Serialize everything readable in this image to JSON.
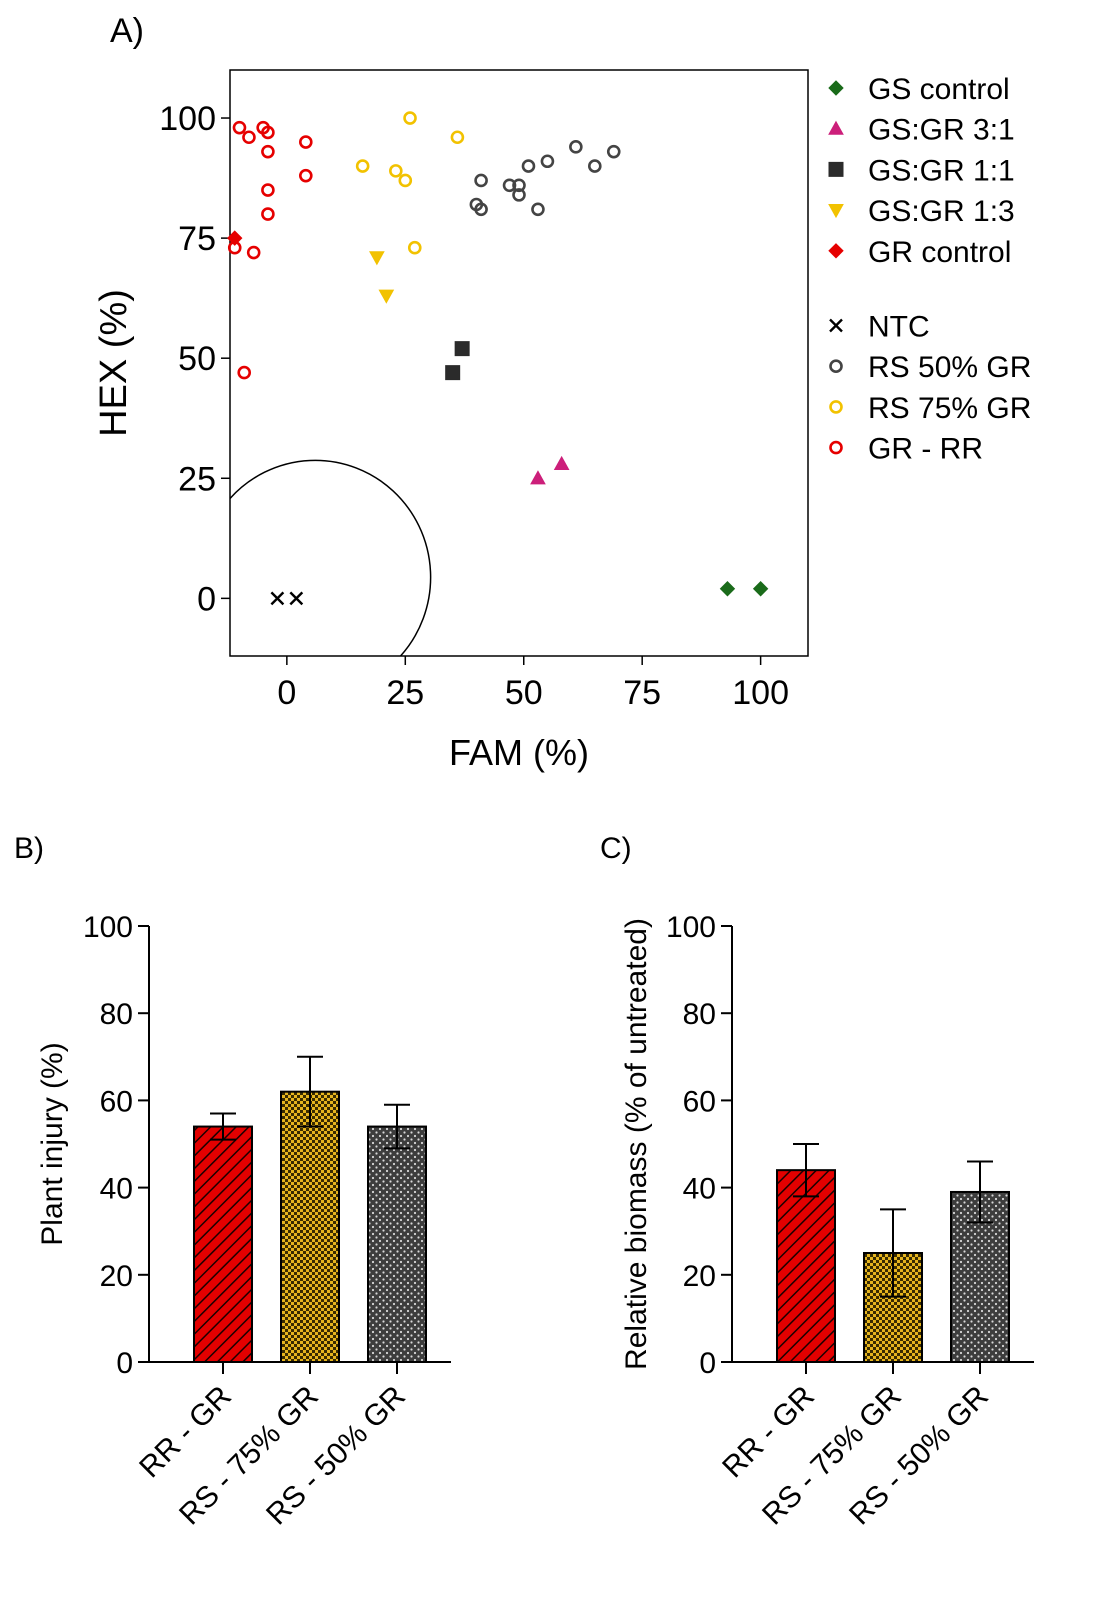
{
  "panels": {
    "a_label": "A)",
    "b_label": "B)",
    "c_label": "C)"
  },
  "chart_data": [
    {
      "type": "scatter",
      "panel": "A)",
      "xlabel": "FAM (%)",
      "ylabel": "HEX (%)",
      "xlim": [
        -12,
        110
      ],
      "ylim": [
        -12,
        110
      ],
      "xticks": [
        "0",
        "25",
        "50",
        "75",
        "100"
      ],
      "yticks": [
        "0",
        "25",
        "50",
        "75",
        "100"
      ],
      "grid": false,
      "legend_position": "right",
      "threshold_arc_radius": 24,
      "series": [
        {
          "name": "GS control",
          "marker": "diamond",
          "filled": true,
          "color": "#1a6b1a",
          "points": [
            [
              93,
              2
            ],
            [
              100,
              2
            ]
          ]
        },
        {
          "name": "GS:GR 3:1",
          "marker": "triangle-up",
          "filled": true,
          "color": "#cc1f7a",
          "points": [
            [
              53,
              25
            ],
            [
              58,
              28
            ]
          ]
        },
        {
          "name": "GS:GR 1:1",
          "marker": "square",
          "filled": true,
          "color": "#2b2b2b",
          "points": [
            [
              35,
              47
            ],
            [
              37,
              52
            ]
          ]
        },
        {
          "name": "GS:GR 1:3",
          "marker": "triangle-down",
          "filled": true,
          "color": "#f2c200",
          "points": [
            [
              19,
              71
            ],
            [
              21,
              63
            ]
          ]
        },
        {
          "name": "GR control",
          "marker": "diamond",
          "filled": true,
          "color": "#e60000",
          "points": [
            [
              -11,
              75
            ]
          ]
        },
        {
          "name": "NTC",
          "marker": "cross",
          "filled": false,
          "color": "#000000",
          "gap_before": true,
          "points": [
            [
              -2,
              0
            ],
            [
              2,
              0
            ]
          ]
        },
        {
          "name": "RS 50% GR",
          "marker": "circle",
          "filled": false,
          "color": "#444444",
          "points": [
            [
              40,
              82
            ],
            [
              41,
              87
            ],
            [
              41,
              81
            ],
            [
              47,
              86
            ],
            [
              49,
              86
            ],
            [
              49,
              84
            ],
            [
              51,
              90
            ],
            [
              53,
              81
            ],
            [
              55,
              91
            ],
            [
              61,
              94
            ],
            [
              65,
              90
            ],
            [
              69,
              93
            ]
          ]
        },
        {
          "name": "RS 75% GR",
          "marker": "circle",
          "filled": false,
          "color": "#f2c200",
          "points": [
            [
              16,
              90
            ],
            [
              23,
              89
            ],
            [
              25,
              87
            ],
            [
              26,
              100
            ],
            [
              27,
              73
            ],
            [
              36,
              96
            ]
          ]
        },
        {
          "name": "GR - RR",
          "marker": "circle",
          "filled": false,
          "color": "#e60000",
          "points": [
            [
              -10,
              98
            ],
            [
              -8,
              96
            ],
            [
              -5,
              98
            ],
            [
              -4,
              93
            ],
            [
              -4,
              97
            ],
            [
              -4,
              85
            ],
            [
              -4,
              80
            ],
            [
              -11,
              73
            ],
            [
              -7,
              72
            ],
            [
              -9,
              47
            ],
            [
              4,
              95
            ],
            [
              4,
              88
            ]
          ]
        }
      ]
    },
    {
      "type": "bar",
      "panel": "B)",
      "ylabel": "Plant injury (%)",
      "ylim": [
        0,
        100
      ],
      "yticks": [
        "0",
        "20",
        "40",
        "60",
        "80",
        "100"
      ],
      "categories": [
        "RR - GR",
        "RS - 75% GR",
        "RS - 50% GR"
      ],
      "values": [
        54,
        62,
        54
      ],
      "errors": [
        3,
        8,
        5
      ],
      "patterns": [
        "red-diagonal",
        "yellow-checker",
        "gray-dotted"
      ]
    },
    {
      "type": "bar",
      "panel": "C)",
      "ylabel": "Relative biomass (% of untreated)",
      "ylim": [
        0,
        100
      ],
      "yticks": [
        "0",
        "20",
        "40",
        "60",
        "80",
        "100"
      ],
      "categories": [
        "RR - GR",
        "RS - 75% GR",
        "RS - 50% GR"
      ],
      "values": [
        44,
        25,
        39
      ],
      "errors": [
        6,
        10,
        7
      ],
      "patterns": [
        "red-diagonal",
        "yellow-checker",
        "gray-dotted"
      ]
    }
  ]
}
